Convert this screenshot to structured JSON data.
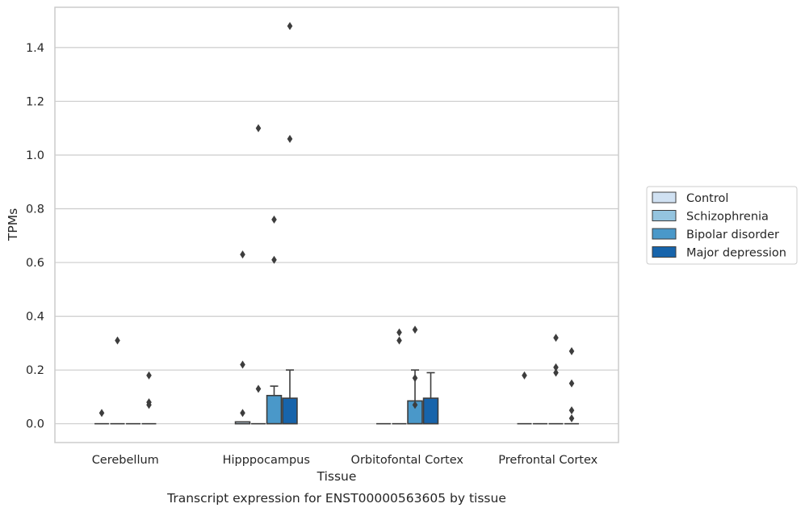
{
  "chart_data": {
    "type": "box",
    "caption": "Transcript expression for ENST00000563605 by tissue",
    "xlabel": "Tissue",
    "ylabel": "TPMs",
    "ylim": [
      -0.07,
      1.55
    ],
    "yticks": [
      0.0,
      0.2,
      0.4,
      0.6,
      0.8,
      1.0,
      1.2,
      1.4
    ],
    "ytick_labels": [
      "0.0",
      "0.2",
      "0.4",
      "0.6",
      "0.8",
      "1.0",
      "1.2",
      "1.4"
    ],
    "grid": "horizontal",
    "legend_position": "right",
    "categories": [
      "Cerebellum",
      "Hipppocampus",
      "Orbitofontal Cortex",
      "Prefrontal Cortex"
    ],
    "series": [
      {
        "name": "Control",
        "color": "#d0e1f2",
        "boxes": [
          {
            "q1": 0,
            "median": 0,
            "q3": 0,
            "whisker_low": 0,
            "whisker_high": 0,
            "outliers": [
              0.04
            ]
          },
          {
            "q1": 0,
            "median": 0,
            "q3": 0.007,
            "whisker_low": 0,
            "whisker_high": 0.007,
            "outliers": [
              0.63,
              0.22,
              0.04
            ]
          },
          {
            "q1": 0,
            "median": 0,
            "q3": 0,
            "whisker_low": 0,
            "whisker_high": 0,
            "outliers": []
          },
          {
            "q1": 0,
            "median": 0,
            "q3": 0,
            "whisker_low": 0,
            "whisker_high": 0,
            "outliers": [
              0.18
            ]
          }
        ]
      },
      {
        "name": "Schizophrenia",
        "color": "#94c4df",
        "boxes": [
          {
            "q1": 0,
            "median": 0,
            "q3": 0,
            "whisker_low": 0,
            "whisker_high": 0,
            "outliers": [
              0.31
            ]
          },
          {
            "q1": 0,
            "median": 0,
            "q3": 0,
            "whisker_low": 0,
            "whisker_high": 0,
            "outliers": [
              1.1,
              0.13
            ]
          },
          {
            "q1": 0,
            "median": 0,
            "q3": 0,
            "whisker_low": 0,
            "whisker_high": 0,
            "outliers": [
              0.34,
              0.31
            ]
          },
          {
            "q1": 0,
            "median": 0,
            "q3": 0,
            "whisker_low": 0,
            "whisker_high": 0,
            "outliers": []
          }
        ]
      },
      {
        "name": "Bipolar disorder",
        "color": "#4a98c9",
        "boxes": [
          {
            "q1": 0,
            "median": 0,
            "q3": 0,
            "whisker_low": 0,
            "whisker_high": 0,
            "outliers": []
          },
          {
            "q1": 0,
            "median": 0,
            "q3": 0.105,
            "whisker_low": 0,
            "whisker_high": 0.14,
            "outliers": [
              0.76,
              0.61
            ]
          },
          {
            "q1": 0,
            "median": 0,
            "q3": 0.085,
            "whisker_low": 0,
            "whisker_high": 0.2,
            "outliers": [
              0.35,
              0.17,
              0.07
            ]
          },
          {
            "q1": 0,
            "median": 0,
            "q3": 0,
            "whisker_low": 0,
            "whisker_high": 0,
            "outliers": [
              0.32,
              0.21,
              0.19
            ]
          }
        ]
      },
      {
        "name": "Major depression",
        "color": "#1764ab",
        "boxes": [
          {
            "q1": 0,
            "median": 0,
            "q3": 0,
            "whisker_low": 0,
            "whisker_high": 0,
            "outliers": [
              0.18,
              0.08,
              0.07
            ]
          },
          {
            "q1": 0,
            "median": 0,
            "q3": 0.095,
            "whisker_low": 0,
            "whisker_high": 0.2,
            "outliers": [
              1.48,
              1.06
            ]
          },
          {
            "q1": 0,
            "median": 0,
            "q3": 0.095,
            "whisker_low": 0,
            "whisker_high": 0.19,
            "outliers": []
          },
          {
            "q1": 0,
            "median": 0,
            "q3": 0,
            "whisker_low": 0,
            "whisker_high": 0,
            "outliers": [
              0.27,
              0.15,
              0.05,
              0.02
            ]
          }
        ]
      }
    ]
  }
}
